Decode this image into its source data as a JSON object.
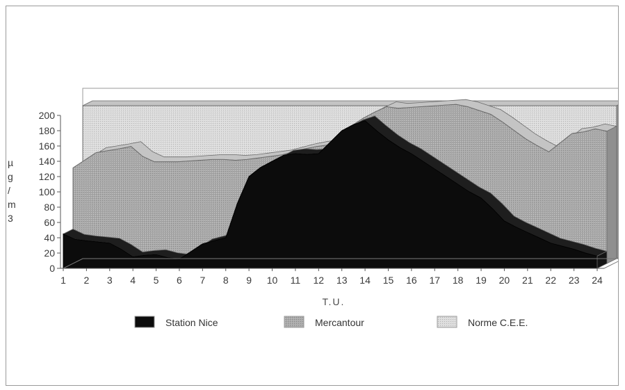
{
  "chart_data": {
    "type": "area",
    "xlabel": "T.U.",
    "ylabel": "µg/m3",
    "ylim": [
      0,
      200
    ],
    "yticks": [
      0,
      20,
      40,
      60,
      80,
      100,
      120,
      140,
      160,
      180,
      200
    ],
    "x": [
      1,
      1.5,
      2,
      3,
      3.5,
      4,
      4.5,
      5,
      5.5,
      6,
      6.5,
      7,
      7.5,
      8,
      8.5,
      9,
      9.5,
      10,
      10.5,
      11,
      11.5,
      12,
      12.5,
      13,
      13.5,
      14,
      14.5,
      15,
      15.5,
      16,
      16.5,
      17,
      17.5,
      18,
      18.5,
      19,
      19.5,
      20,
      20.5,
      21,
      21.5,
      22,
      22.5,
      23,
      23.5,
      24
    ],
    "xticks": [
      1,
      2,
      3,
      4,
      5,
      6,
      7,
      8,
      9,
      10,
      11,
      12,
      13,
      14,
      15,
      16,
      17,
      18,
      19,
      20,
      21,
      22,
      23,
      24
    ],
    "series": [
      {
        "name": "Norme C.E.E.",
        "values": [
          200,
          200,
          200,
          200,
          200,
          200,
          200,
          200,
          200,
          200,
          200,
          200,
          200,
          200,
          200,
          200,
          200,
          200,
          200,
          200,
          200,
          200,
          200,
          200,
          200,
          200,
          200,
          200,
          200,
          200,
          200,
          200,
          200,
          200,
          200,
          200,
          200,
          200,
          200,
          200,
          200,
          200,
          200,
          200,
          200,
          200
        ]
      },
      {
        "name": "Mercantour",
        "values": [
          125,
          135,
          145,
          150,
          153,
          140,
          133,
          133,
          133,
          134,
          135,
          136,
          136,
          135,
          136,
          138,
          140,
          142,
          146,
          150,
          153,
          155,
          165,
          180,
          190,
          198,
          205,
          203,
          204,
          205,
          206,
          207,
          208,
          205,
          200,
          195,
          185,
          174,
          163,
          154,
          146,
          158,
          170,
          172,
          176,
          173
        ]
      },
      {
        "name": "Station Nice",
        "values": [
          45,
          38,
          36,
          33,
          25,
          15,
          17,
          18,
          14,
          12,
          22,
          32,
          36,
          40,
          85,
          120,
          132,
          140,
          148,
          150,
          149,
          150,
          165,
          180,
          188,
          193,
          180,
          168,
          158,
          150,
          140,
          130,
          120,
          110,
          100,
          92,
          78,
          62,
          54,
          47,
          40,
          33,
          29,
          25,
          20,
          16
        ]
      }
    ],
    "colors": {
      "Station Nice": "#0c0c0c",
      "Mercantour": "#a9a9a9",
      "Norme C.E.E.": "#dcdcdc"
    },
    "legend": {
      "position": "bottom",
      "items": [
        "Station Nice",
        "Mercantour",
        "Norme C.E.E."
      ]
    },
    "grid": false
  }
}
